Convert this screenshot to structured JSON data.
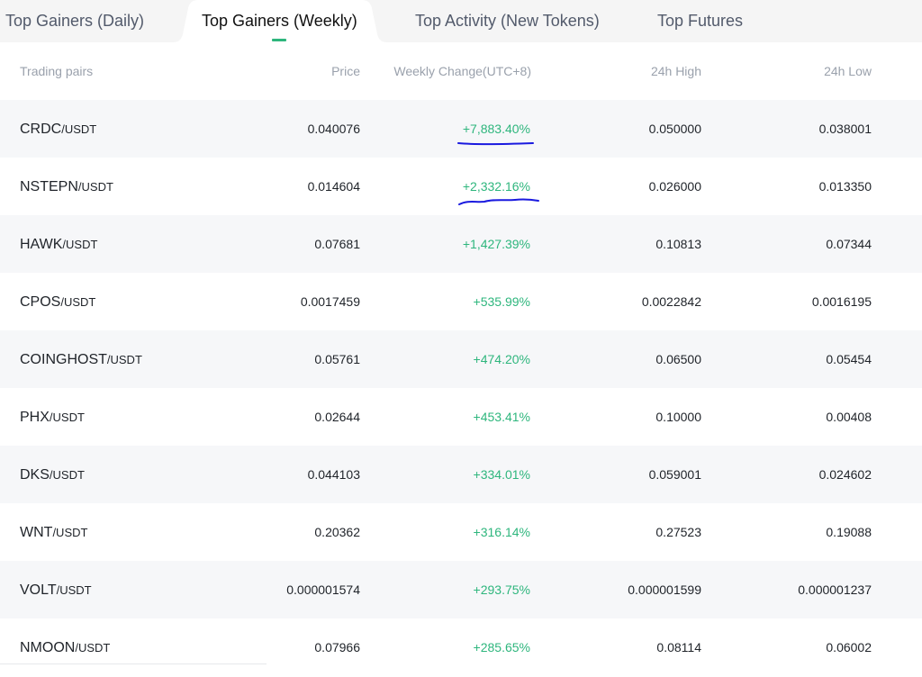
{
  "tabs": [
    {
      "label": "Top Gainers (Daily)",
      "active": false
    },
    {
      "label": "Top Gainers (Weekly)",
      "active": true
    },
    {
      "label": "Top Activity (New Tokens)",
      "active": false
    },
    {
      "label": "Top Futures",
      "active": false
    }
  ],
  "table": {
    "columns": [
      "Trading pairs",
      "Price",
      "Weekly Change(UTC+8)",
      "24h High",
      "24h Low"
    ],
    "rows": [
      {
        "base": "CRDC",
        "quote": "/USDT",
        "price": "0.040076",
        "change": "+7,883.40%",
        "high": "0.050000",
        "low": "0.038001"
      },
      {
        "base": "NSTEPN",
        "quote": "/USDT",
        "price": "0.014604",
        "change": "+2,332.16%",
        "high": "0.026000",
        "low": "0.013350"
      },
      {
        "base": "HAWK",
        "quote": "/USDT",
        "price": "0.07681",
        "change": "+1,427.39%",
        "high": "0.10813",
        "low": "0.07344"
      },
      {
        "base": "CPOS",
        "quote": "/USDT",
        "price": "0.0017459",
        "change": "+535.99%",
        "high": "0.0022842",
        "low": "0.0016195"
      },
      {
        "base": "COINGHOST",
        "quote": "/USDT",
        "price": "0.05761",
        "change": "+474.20%",
        "high": "0.06500",
        "low": "0.05454"
      },
      {
        "base": "PHX",
        "quote": "/USDT",
        "price": "0.02644",
        "change": "+453.41%",
        "high": "0.10000",
        "low": "0.00408"
      },
      {
        "base": "DKS",
        "quote": "/USDT",
        "price": "0.044103",
        "change": "+334.01%",
        "high": "0.059001",
        "low": "0.024602"
      },
      {
        "base": "WNT",
        "quote": "/USDT",
        "price": "0.20362",
        "change": "+316.14%",
        "high": "0.27523",
        "low": "0.19088"
      },
      {
        "base": "VOLT",
        "quote": "/USDT",
        "price": "0.000001574",
        "change": "+293.75%",
        "high": "0.000001599",
        "low": "0.000001237"
      },
      {
        "base": "NMOON",
        "quote": "/USDT",
        "price": "0.07966",
        "change": "+285.65%",
        "high": "0.08114",
        "low": "0.06002"
      }
    ]
  },
  "colors": {
    "accent_green": "#2eb67d",
    "annotation_blue": "#1a1adf",
    "tabbar_bg": "#f5f5f5",
    "row_alt_bg": "#f6f7f9"
  }
}
